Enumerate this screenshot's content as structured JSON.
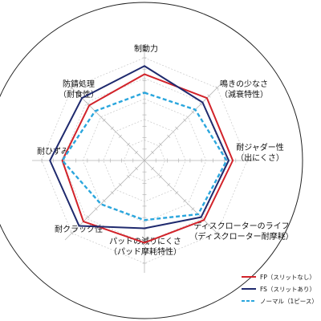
{
  "chart_data": {
    "type": "radar",
    "title": "",
    "axes": [
      {
        "lines": [
          "制動力"
        ]
      },
      {
        "lines": [
          "鳴きの少なさ",
          "（減衰特性）"
        ]
      },
      {
        "lines": [
          "耐ジャダー性",
          "（出にくさ）"
        ]
      },
      {
        "lines": [
          "ディスクローターのライフ",
          "（ディスクローター耐摩耗）"
        ]
      },
      {
        "lines": [
          "パッドの減りにくさ",
          "（パッド摩耗特性）"
        ]
      },
      {
        "lines": [
          "耐クラック性"
        ]
      },
      {
        "lines": [
          "耐ひずみ"
        ]
      },
      {
        "lines": [
          "防錆処理",
          "（耐食性）"
        ]
      }
    ],
    "rlim": [
      0,
      5
    ],
    "grid": true,
    "legend_position": "bottom-right",
    "series": [
      {
        "name": "FP（スリットなし）",
        "color": "#d2232a",
        "dash": "solid",
        "values": [
          4.2,
          4.3,
          4.3,
          4.1,
          4.0,
          4.2,
          4.0,
          3.8
        ]
      },
      {
        "name": "FS（スリットあり）",
        "color": "#1f2a6e",
        "dash": "solid",
        "values": [
          4.6,
          4.0,
          4.1,
          3.9,
          3.3,
          4.5,
          4.6,
          4.3
        ]
      },
      {
        "name": "ノーマル（1ピース）",
        "color": "#2aa6dd",
        "dash": "dashed",
        "values": [
          3.3,
          3.5,
          4.0,
          3.7,
          2.9,
          3.0,
          4.0,
          3.4
        ]
      }
    ]
  }
}
